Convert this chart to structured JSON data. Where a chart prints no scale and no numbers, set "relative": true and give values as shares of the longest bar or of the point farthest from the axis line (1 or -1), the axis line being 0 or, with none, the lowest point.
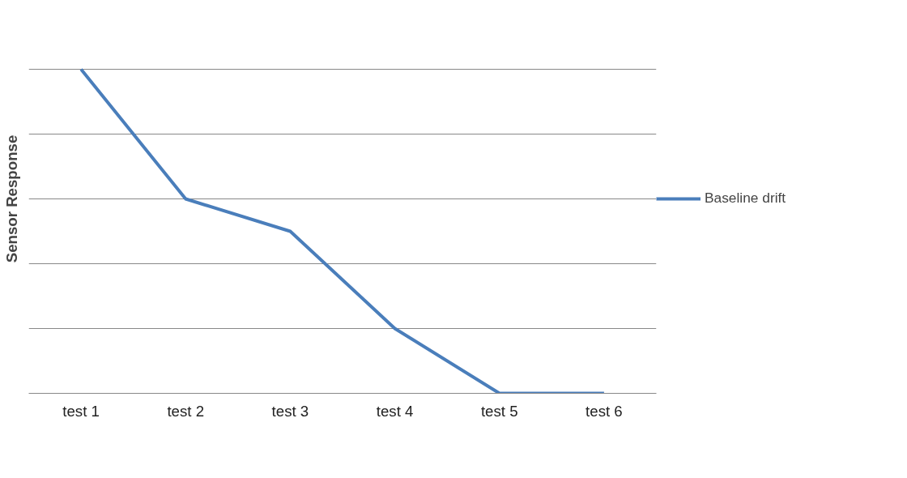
{
  "chart_data": {
    "type": "line",
    "ylabel": "Sensor Response",
    "relative": true,
    "grid": "y",
    "legend": "right",
    "marker": "none",
    "line_style": "solid",
    "categories": [
      "test 1",
      "test 2",
      "test 3",
      "test 4",
      "test 5",
      "test 6"
    ],
    "series": [
      {
        "name": "Baseline drift",
        "color": "#4a7ebb",
        "values": [
          1,
          0.6,
          0.5,
          0.2,
          0,
          0
        ]
      }
    ]
  }
}
